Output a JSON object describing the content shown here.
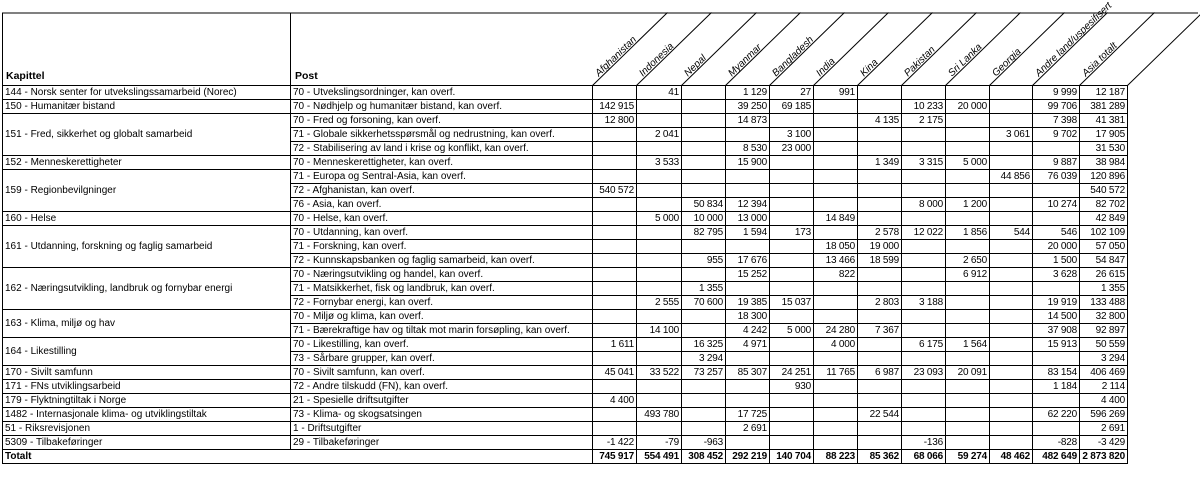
{
  "header": {
    "kapittel_label": "Kapittel",
    "post_label": "Post",
    "countries": [
      "Afghanistan",
      "Indonesia",
      "Nepal",
      "Myanmar",
      "Bangladesh",
      "India",
      "Kina",
      "Pakistan",
      "Sri Lanka",
      "Georgia",
      "Andre land/uspesifisert",
      "Asia totalt"
    ]
  },
  "groups": [
    {
      "kapittel": "144 - Norsk senter for utvekslingssamarbeid (Norec)",
      "rows": [
        {
          "post": "70 - Utvekslingsordninger, kan overf.",
          "values": [
            "",
            "41",
            "",
            "1 129",
            "27",
            "991",
            "",
            "",
            "",
            "",
            "9 999",
            "12 187"
          ]
        }
      ]
    },
    {
      "kapittel": "150 - Humanitær bistand",
      "rows": [
        {
          "post": "70 - Nødhjelp og humanitær bistand, kan overf.",
          "values": [
            "142 915",
            "",
            "",
            "39 250",
            "69 185",
            "",
            "",
            "10 233",
            "20 000",
            "",
            "99 706",
            "381 289"
          ]
        }
      ]
    },
    {
      "kapittel": "151 - Fred, sikkerhet og globalt samarbeid",
      "rows": [
        {
          "post": "70 - Fred og forsoning, kan overf.",
          "values": [
            "12 800",
            "",
            "",
            "14 873",
            "",
            "",
            "4 135",
            "2 175",
            "",
            "",
            "7 398",
            "41 381"
          ]
        },
        {
          "post": "71 - Globale sikkerhetsspørsmål og nedrustning, kan overf.",
          "values": [
            "",
            "2 041",
            "",
            "",
            "3 100",
            "",
            "",
            "",
            "",
            "3 061",
            "9 702",
            "17 905"
          ]
        },
        {
          "post": "72 - Stabilisering av land i krise og konflikt, kan overf.",
          "values": [
            "",
            "",
            "",
            "8 530",
            "23 000",
            "",
            "",
            "",
            "",
            "",
            "",
            "31 530"
          ]
        }
      ]
    },
    {
      "kapittel": "152 - Menneskerettigheter",
      "rows": [
        {
          "post": "70 - Menneskerettigheter, kan overf.",
          "values": [
            "",
            "3 533",
            "",
            "15 900",
            "",
            "",
            "1 349",
            "3 315",
            "5 000",
            "",
            "9 887",
            "38 984"
          ]
        }
      ]
    },
    {
      "kapittel": "159 - Regionbevilgninger",
      "rows": [
        {
          "post": "71 - Europa og Sentral-Asia, kan overf.",
          "values": [
            "",
            "",
            "",
            "",
            "",
            "",
            "",
            "",
            "",
            "44 856",
            "76 039",
            "120 896"
          ]
        },
        {
          "post": "72 - Afghanistan, kan overf.",
          "values": [
            "540 572",
            "",
            "",
            "",
            "",
            "",
            "",
            "",
            "",
            "",
            "",
            "540 572"
          ]
        },
        {
          "post": "76 - Asia, kan overf.",
          "values": [
            "",
            "",
            "50 834",
            "12 394",
            "",
            "",
            "",
            "8 000",
            "1 200",
            "",
            "10 274",
            "82 702"
          ]
        }
      ]
    },
    {
      "kapittel": "160 - Helse",
      "rows": [
        {
          "post": "70 - Helse, kan overf.",
          "values": [
            "",
            "5 000",
            "10 000",
            "13 000",
            "",
            "14 849",
            "",
            "",
            "",
            "",
            "",
            "42 849"
          ]
        }
      ]
    },
    {
      "kapittel": "161 - Utdanning, forskning og faglig samarbeid",
      "rows": [
        {
          "post": "70 - Utdanning, kan overf.",
          "values": [
            "",
            "",
            "82 795",
            "1 594",
            "173",
            "",
            "2 578",
            "12 022",
            "1 856",
            "544",
            "546",
            "102 109"
          ]
        },
        {
          "post": "71 - Forskning, kan overf.",
          "values": [
            "",
            "",
            "",
            "",
            "",
            "18 050",
            "19 000",
            "",
            "",
            "",
            "20 000",
            "57 050"
          ]
        },
        {
          "post": "72 - Kunnskapsbanken og faglig samarbeid, kan overf.",
          "values": [
            "",
            "",
            "955",
            "17 676",
            "",
            "13 466",
            "18 599",
            "",
            "2 650",
            "",
            "1 500",
            "54 847"
          ]
        }
      ]
    },
    {
      "kapittel": "162 - Næringsutvikling, landbruk og fornybar energi",
      "rows": [
        {
          "post": "70 - Næringsutvikling og handel, kan overf.",
          "values": [
            "",
            "",
            "",
            "15 252",
            "",
            "822",
            "",
            "",
            "6 912",
            "",
            "3 628",
            "26 615"
          ]
        },
        {
          "post": "71 - Matsikkerhet, fisk og landbruk, kan overf.",
          "values": [
            "",
            "",
            "1 355",
            "",
            "",
            "",
            "",
            "",
            "",
            "",
            "",
            "1 355"
          ]
        },
        {
          "post": "72 - Fornybar energi, kan overf.",
          "values": [
            "",
            "2 555",
            "70 600",
            "19 385",
            "15 037",
            "",
            "2 803",
            "3 188",
            "",
            "",
            "19 919",
            "133 488"
          ]
        }
      ]
    },
    {
      "kapittel": "163 - Klima, miljø og hav",
      "rows": [
        {
          "post": "70 - Miljø og klima, kan overf.",
          "values": [
            "",
            "",
            "",
            "18 300",
            "",
            "",
            "",
            "",
            "",
            "",
            "14 500",
            "32 800"
          ]
        },
        {
          "post": "71 - Bærekraftige hav og tiltak mot marin forsøpling, kan overf.",
          "values": [
            "",
            "14 100",
            "",
            "4 242",
            "5 000",
            "24 280",
            "7 367",
            "",
            "",
            "",
            "37 908",
            "92 897"
          ]
        }
      ]
    },
    {
      "kapittel": "164 - Likestilling",
      "rows": [
        {
          "post": "70 - Likestilling, kan overf.",
          "values": [
            "1 611",
            "",
            "16 325",
            "4 971",
            "",
            "4 000",
            "",
            "6 175",
            "1 564",
            "",
            "15 913",
            "50 559"
          ]
        },
        {
          "post": "73 - Sårbare grupper, kan overf.",
          "values": [
            "",
            "",
            "3 294",
            "",
            "",
            "",
            "",
            "",
            "",
            "",
            "",
            "3 294"
          ]
        }
      ]
    },
    {
      "kapittel": "170 - Sivilt samfunn",
      "rows": [
        {
          "post": "70 - Sivilt samfunn, kan overf.",
          "values": [
            "45 041",
            "33 522",
            "73 257",
            "85 307",
            "24 251",
            "11 765",
            "6 987",
            "23 093",
            "20 091",
            "",
            "83 154",
            "406 469"
          ]
        }
      ]
    },
    {
      "kapittel": "171 - FNs utviklingsarbeid",
      "rows": [
        {
          "post": "72 - Andre tilskudd (FN), kan overf.",
          "values": [
            "",
            "",
            "",
            "",
            "930",
            "",
            "",
            "",
            "",
            "",
            "1 184",
            "2 114"
          ]
        }
      ]
    },
    {
      "kapittel": "179 - Flyktningtiltak i Norge",
      "rows": [
        {
          "post": "21 - Spesielle driftsutgifter",
          "values": [
            "4 400",
            "",
            "",
            "",
            "",
            "",
            "",
            "",
            "",
            "",
            "",
            "4 400"
          ]
        }
      ]
    },
    {
      "kapittel": "1482 - Internasjonale klima- og utviklingstiltak",
      "rows": [
        {
          "post": "73 - Klima- og skogsatsingen",
          "values": [
            "",
            "493 780",
            "",
            "17 725",
            "",
            "",
            "22 544",
            "",
            "",
            "",
            "62 220",
            "596 269"
          ]
        }
      ]
    },
    {
      "kapittel": "51 - Riksrevisjonen",
      "rows": [
        {
          "post": "1 - Driftsutgifter",
          "values": [
            "",
            "",
            "",
            "2 691",
            "",
            "",
            "",
            "",
            "",
            "",
            "",
            "2 691"
          ]
        }
      ]
    },
    {
      "kapittel": "5309 - Tilbakeføringer",
      "rows": [
        {
          "post": "29 - Tilbakeføringer",
          "values": [
            "-1 422",
            "-79",
            "-963",
            "",
            "",
            "",
            "",
            "-136",
            "",
            "",
            "-828",
            "-3 429"
          ]
        }
      ]
    }
  ],
  "total": {
    "label": "Totalt",
    "values": [
      "745 917",
      "554 491",
      "308 452",
      "292 219",
      "140 704",
      "88 223",
      "85 362",
      "68 066",
      "59 274",
      "48 462",
      "482 649",
      "2 873 820"
    ]
  },
  "colors": {
    "border": "#000000",
    "text": "#000000",
    "background": "#ffffff"
  }
}
